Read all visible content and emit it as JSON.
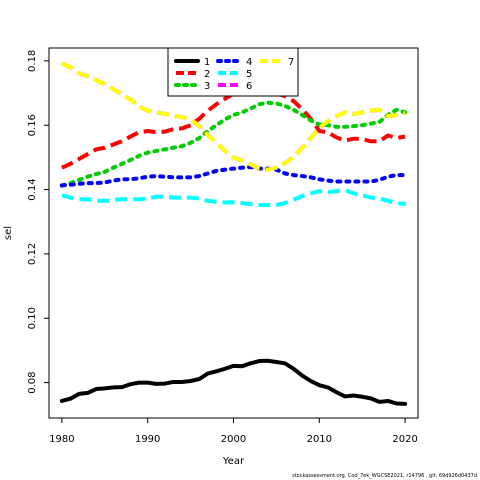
{
  "footer": "stockassessment.org, Cod_7ek_WGCSE2021, r14796 , git: 69d926d0437d",
  "chart_data": {
    "type": "line",
    "title": "",
    "xlabel": "Year",
    "ylabel": "sel",
    "xlim": [
      1978.5,
      2021.5
    ],
    "ylim": [
      0.069,
      0.184
    ],
    "xticks": [
      1980,
      1990,
      2000,
      2010,
      2020
    ],
    "yticks": [
      0.08,
      0.1,
      0.12,
      0.14,
      0.16,
      0.18
    ],
    "ytick_labels": [
      "0.08",
      "0.10",
      "0.12",
      "0.14",
      "0.16",
      "0.18"
    ],
    "grid": false,
    "legend_position": "top-center",
    "legend_order": [
      "1",
      "2",
      "3",
      "4",
      "5",
      "6",
      "7"
    ],
    "x": [
      1980,
      1981,
      1982,
      1983,
      1984,
      1985,
      1986,
      1987,
      1988,
      1989,
      1990,
      1991,
      1992,
      1993,
      1994,
      1995,
      1996,
      1997,
      1998,
      1999,
      2000,
      2001,
      2002,
      2003,
      2004,
      2005,
      2006,
      2007,
      2008,
      2009,
      2010,
      2011,
      2012,
      2013,
      2014,
      2015,
      2016,
      2017,
      2018,
      2019,
      2020
    ],
    "series": [
      {
        "name": "1",
        "color": "#000000",
        "dash": "solid",
        "values": [
          0.0743,
          0.075,
          0.0765,
          0.0768,
          0.078,
          0.0782,
          0.0785,
          0.0786,
          0.0795,
          0.08,
          0.08,
          0.0796,
          0.0797,
          0.0802,
          0.0802,
          0.0805,
          0.0811,
          0.0828,
          0.0835,
          0.0843,
          0.0852,
          0.0851,
          0.086,
          0.0867,
          0.0868,
          0.0864,
          0.086,
          0.0843,
          0.0822,
          0.0805,
          0.0792,
          0.0785,
          0.077,
          0.0757,
          0.076,
          0.0756,
          0.0751,
          0.074,
          0.0743,
          0.0735,
          0.0734
        ]
      },
      {
        "name": "2",
        "color": "#ff0000",
        "dash": "long-dash",
        "values": [
          0.1468,
          0.148,
          0.1495,
          0.151,
          0.1525,
          0.153,
          0.154,
          0.155,
          0.1565,
          0.1578,
          0.1582,
          0.1578,
          0.158,
          0.1588,
          0.159,
          0.16,
          0.162,
          0.1645,
          0.1665,
          0.1682,
          0.1698,
          0.171,
          0.1712,
          0.171,
          0.1705,
          0.17,
          0.169,
          0.1675,
          0.165,
          0.162,
          0.1582,
          0.1578,
          0.1562,
          0.1552,
          0.1558,
          0.1557,
          0.155,
          0.155,
          0.1568,
          0.156,
          0.1565
        ]
      },
      {
        "name": "3",
        "color": "#00cd00",
        "dash": "dot",
        "values": [
          0.1412,
          0.142,
          0.143,
          0.144,
          0.1448,
          0.1455,
          0.1468,
          0.148,
          0.1492,
          0.1505,
          0.1515,
          0.152,
          0.1525,
          0.153,
          0.1535,
          0.1545,
          0.156,
          0.1582,
          0.16,
          0.1618,
          0.1632,
          0.164,
          0.1652,
          0.1665,
          0.167,
          0.1668,
          0.166,
          0.1648,
          0.1632,
          0.1615,
          0.1602,
          0.16,
          0.1595,
          0.1595,
          0.1597,
          0.16,
          0.1605,
          0.161,
          0.1632,
          0.1648,
          0.164
        ]
      },
      {
        "name": "4",
        "color": "#0000ff",
        "dash": "dot",
        "values": [
          0.1413,
          0.1415,
          0.1418,
          0.142,
          0.142,
          0.1422,
          0.1428,
          0.1432,
          0.1432,
          0.1435,
          0.144,
          0.1442,
          0.144,
          0.1438,
          0.1438,
          0.1438,
          0.1442,
          0.145,
          0.1458,
          0.1462,
          0.1465,
          0.1468,
          0.147,
          0.1465,
          0.1465,
          0.1462,
          0.145,
          0.1445,
          0.1442,
          0.1438,
          0.1432,
          0.1428,
          0.1425,
          0.1425,
          0.1425,
          0.1425,
          0.1425,
          0.143,
          0.144,
          0.1445,
          0.1445
        ]
      },
      {
        "name": "5",
        "color": "#00ffff",
        "dash": "long-dash",
        "values": [
          0.1382,
          0.1375,
          0.137,
          0.137,
          0.1365,
          0.1365,
          0.1368,
          0.137,
          0.137,
          0.137,
          0.1372,
          0.1378,
          0.1378,
          0.1375,
          0.1375,
          0.1375,
          0.1372,
          0.1365,
          0.1362,
          0.136,
          0.136,
          0.1358,
          0.1355,
          0.1352,
          0.1352,
          0.1352,
          0.1358,
          0.1368,
          0.138,
          0.1388,
          0.1395,
          0.1392,
          0.1395,
          0.1398,
          0.1388,
          0.1382,
          0.1375,
          0.1372,
          0.1365,
          0.1358,
          0.1355
        ]
      },
      {
        "name": "6",
        "color": "#ff00ff",
        "dash": "long-dash",
        "values": [
          0.1792,
          0.178,
          0.1762,
          0.1752,
          0.174,
          0.1728,
          0.1712,
          0.1695,
          0.168,
          0.1658,
          0.1645,
          0.164,
          0.1635,
          0.163,
          0.1625,
          0.1618,
          0.1598,
          0.157,
          0.1545,
          0.152,
          0.15,
          0.149,
          0.1478,
          0.1465,
          0.1462,
          0.1468,
          0.1482,
          0.1502,
          0.153,
          0.156,
          0.1592,
          0.1612,
          0.1628,
          0.164,
          0.1635,
          0.164,
          0.1645,
          0.1648,
          0.1628,
          0.1632,
          0.1638
        ]
      },
      {
        "name": "7",
        "color": "#ffff00",
        "dash": "long-dash",
        "values": [
          0.1792,
          0.178,
          0.1762,
          0.1752,
          0.174,
          0.1728,
          0.1712,
          0.1695,
          0.168,
          0.1658,
          0.1645,
          0.164,
          0.1635,
          0.163,
          0.1625,
          0.1618,
          0.1598,
          0.157,
          0.1545,
          0.152,
          0.15,
          0.149,
          0.1478,
          0.1465,
          0.1462,
          0.1468,
          0.1482,
          0.1502,
          0.153,
          0.156,
          0.1592,
          0.1612,
          0.1628,
          0.164,
          0.1635,
          0.164,
          0.1645,
          0.1648,
          0.1628,
          0.1632,
          0.1638
        ]
      }
    ]
  }
}
